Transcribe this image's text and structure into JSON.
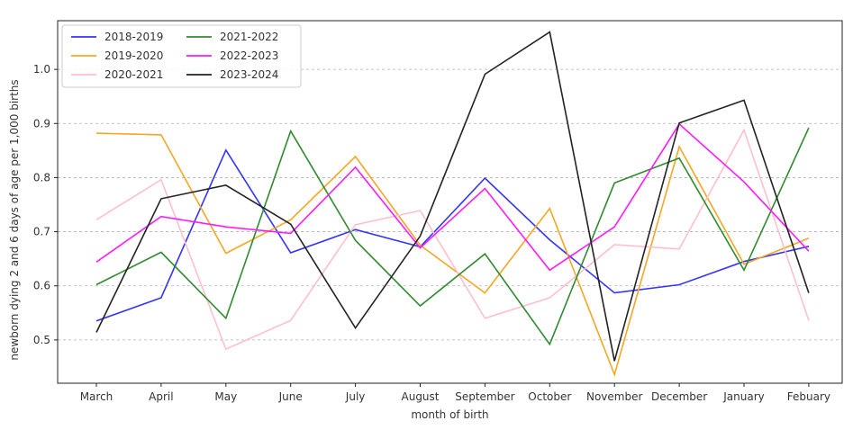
{
  "chart_data": {
    "type": "line",
    "title": "",
    "xlabel": "month of birth",
    "ylabel": "newborn dying 2 and 6 days of age per 1,000 births",
    "categories": [
      "March",
      "April",
      "May",
      "June",
      "July",
      "August",
      "September",
      "October",
      "November",
      "December",
      "January",
      "Febuary"
    ],
    "ylim": [
      0.42,
      1.09
    ],
    "yticks": [
      "0.5",
      "0.6",
      "0.7",
      "0.8",
      "0.9",
      "1.0"
    ],
    "grid": "horizontal dashed",
    "legend_position": "top-left",
    "series": [
      {
        "name": "2018-2019",
        "color": "#3333ff",
        "values": [
          0.535,
          0.578,
          0.851,
          0.661,
          0.704,
          0.672,
          0.799,
          0.685,
          0.587,
          0.602,
          0.645,
          0.673
        ]
      },
      {
        "name": "2019-2020",
        "color": "#f5a623",
        "values": [
          0.882,
          0.879,
          0.66,
          0.722,
          0.839,
          0.675,
          0.587,
          0.743,
          0.436,
          0.857,
          0.64,
          0.688
        ]
      },
      {
        "name": "2020-2021",
        "color": "#ffc0cb",
        "values": [
          0.722,
          0.796,
          0.483,
          0.536,
          0.713,
          0.739,
          0.54,
          0.578,
          0.676,
          0.668,
          0.888,
          0.536
        ]
      },
      {
        "name": "2021-2022",
        "color": "#2e8b2e",
        "values": [
          0.602,
          0.662,
          0.54,
          0.886,
          0.684,
          0.563,
          0.659,
          0.492,
          0.79,
          0.836,
          0.629,
          0.892
        ]
      },
      {
        "name": "2022-2023",
        "color": "#ff1aff",
        "values": [
          0.644,
          0.728,
          0.709,
          0.697,
          0.819,
          0.67,
          0.78,
          0.629,
          0.709,
          0.899,
          0.792,
          0.664
        ]
      },
      {
        "name": "2023-2024",
        "color": "#222222",
        "values": [
          0.514,
          0.761,
          0.786,
          0.714,
          0.522,
          0.692,
          0.991,
          1.069,
          0.461,
          0.901,
          0.943,
          0.587
        ]
      }
    ]
  }
}
